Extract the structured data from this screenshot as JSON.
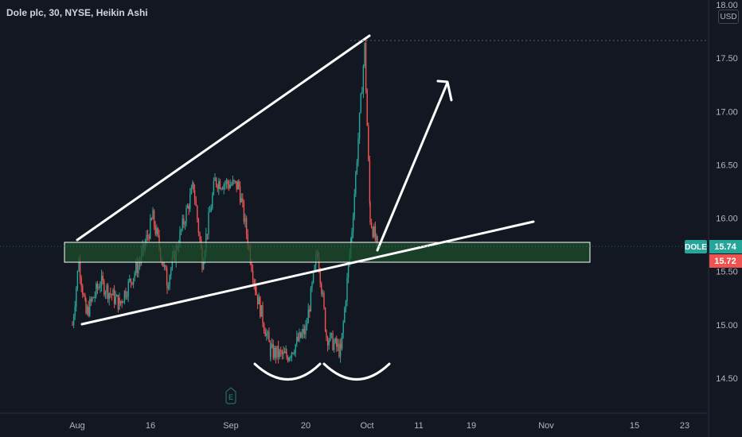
{
  "header": {
    "symbol_title": "Dole plc, 30, NYSE, Heikin Ashi",
    "currency": "USD"
  },
  "price_axis": {
    "ticks": [
      {
        "value": 18.0,
        "label": "18.00"
      },
      {
        "value": 17.5,
        "label": "17.50"
      },
      {
        "value": 17.0,
        "label": "17.00"
      },
      {
        "value": 16.5,
        "label": "16.50"
      },
      {
        "value": 16.0,
        "label": "16.00"
      },
      {
        "value": 15.5,
        "label": "15.50"
      },
      {
        "value": 15.0,
        "label": "15.00"
      },
      {
        "value": 14.5,
        "label": "14.50"
      }
    ],
    "symbol_tag": "DOLE",
    "last_price": {
      "value": 15.74,
      "label": "15.74"
    },
    "prev_close": {
      "value": 15.72,
      "label": "15.72"
    }
  },
  "time_axis": {
    "labels": [
      "Aug",
      "16",
      "Sep",
      "20",
      "Oct",
      "11",
      "19",
      "Nov",
      "15",
      "23"
    ]
  },
  "earnings_marker": {
    "label": "E"
  },
  "colors": {
    "background": "#131722",
    "up": "#26a69a",
    "down": "#ef5350",
    "axis_text": "#b2b5be",
    "drawing": "#ffffff",
    "zone_fill": "#1e4d2b",
    "tag_up": "#26a69a",
    "tag_down": "#ef5350"
  },
  "chart_data": {
    "type": "candlestick",
    "ylim": [
      14.4,
      18.0
    ],
    "xlabel": "",
    "ylabel": "",
    "grid": false,
    "series_shape": [
      {
        "date": "Jul 31",
        "price": 15.0
      },
      {
        "date": "Aug 1",
        "price": 15.6
      },
      {
        "date": "Aug 3",
        "price": 15.1
      },
      {
        "date": "Aug 8",
        "price": 15.4
      },
      {
        "date": "Aug 11",
        "price": 15.2
      },
      {
        "date": "Aug 14",
        "price": 15.6
      },
      {
        "date": "Aug 15",
        "price": 16.0
      },
      {
        "date": "Aug 17",
        "price": 15.4
      },
      {
        "date": "Aug 22",
        "price": 16.3
      },
      {
        "date": "Aug 24",
        "price": 15.6
      },
      {
        "date": "Aug 28",
        "price": 16.35
      },
      {
        "date": "Aug 31",
        "price": 16.3
      },
      {
        "date": "Sep 5",
        "price": 15.3
      },
      {
        "date": "Sep 8",
        "price": 14.75
      },
      {
        "date": "Sep 13",
        "price": 14.7
      },
      {
        "date": "Sep 18",
        "price": 14.95
      },
      {
        "date": "Sep 21",
        "price": 15.7
      },
      {
        "date": "Sep 24",
        "price": 14.9
      },
      {
        "date": "Sep 27",
        "price": 14.75
      },
      {
        "date": "Sep 28",
        "price": 15.9
      },
      {
        "date": "Sep 29",
        "price": 17.6
      },
      {
        "date": "Sep 30",
        "price": 16.0
      },
      {
        "date": "Oct 2",
        "price": 15.72
      }
    ]
  }
}
